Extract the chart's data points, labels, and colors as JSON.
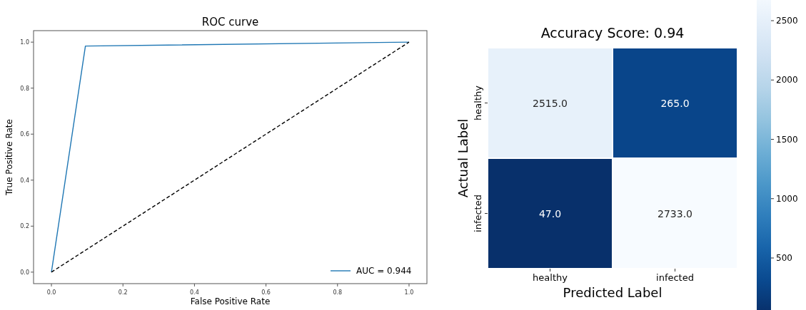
{
  "chart_data": [
    {
      "type": "line",
      "title": "ROC curve",
      "xlabel": "False Positive Rate",
      "ylabel": "True Positive Rate",
      "xlim": [
        -0.05,
        1.05
      ],
      "ylim": [
        -0.05,
        1.05
      ],
      "xticks": [
        {
          "value": 0,
          "label": "0.0"
        },
        {
          "value": 0.2,
          "label": "0.2"
        },
        {
          "value": 0.4,
          "label": "0.4"
        },
        {
          "value": 0.6,
          "label": "0.6"
        },
        {
          "value": 0.8,
          "label": "0.8"
        },
        {
          "value": 1,
          "label": "1.0"
        }
      ],
      "yticks": [
        {
          "value": 0,
          "label": "0.0"
        },
        {
          "value": 0.2,
          "label": "0.2"
        },
        {
          "value": 0.4,
          "label": "0.4"
        },
        {
          "value": 0.6,
          "label": "0.6"
        },
        {
          "value": 0.8,
          "label": "0.8"
        },
        {
          "value": 1,
          "label": "1.0"
        }
      ],
      "grid": false,
      "legend": "bottom right",
      "series": [
        {
          "name": "AUC = 0.944",
          "color": "#1f77b4",
          "x": [
            0,
            0.095,
            1
          ],
          "values": [
            0,
            0.983,
            1
          ],
          "line_style": "solid"
        },
        {
          "color": "#000000",
          "x": [
            0,
            1
          ],
          "values": [
            0,
            1
          ],
          "line_style": "dashed"
        }
      ]
    },
    {
      "type": "heatmap",
      "title": "Accuracy Score: 0.94",
      "xlabel": "Predicted Label",
      "ylabel": "Actual Label",
      "categories": [
        "healthy",
        "infected"
      ],
      "y_categories": [
        "healthy",
        "infected"
      ],
      "cells": [
        [
          2515,
          265
        ],
        [
          47,
          2733
        ]
      ],
      "cell_labels": [
        [
          "2515.0",
          "265.0"
        ],
        [
          "47.0",
          "2733.0"
        ]
      ],
      "clim": [
        47,
        2733
      ],
      "cticks": [
        500,
        1000,
        1500,
        2000,
        2500
      ]
    }
  ]
}
